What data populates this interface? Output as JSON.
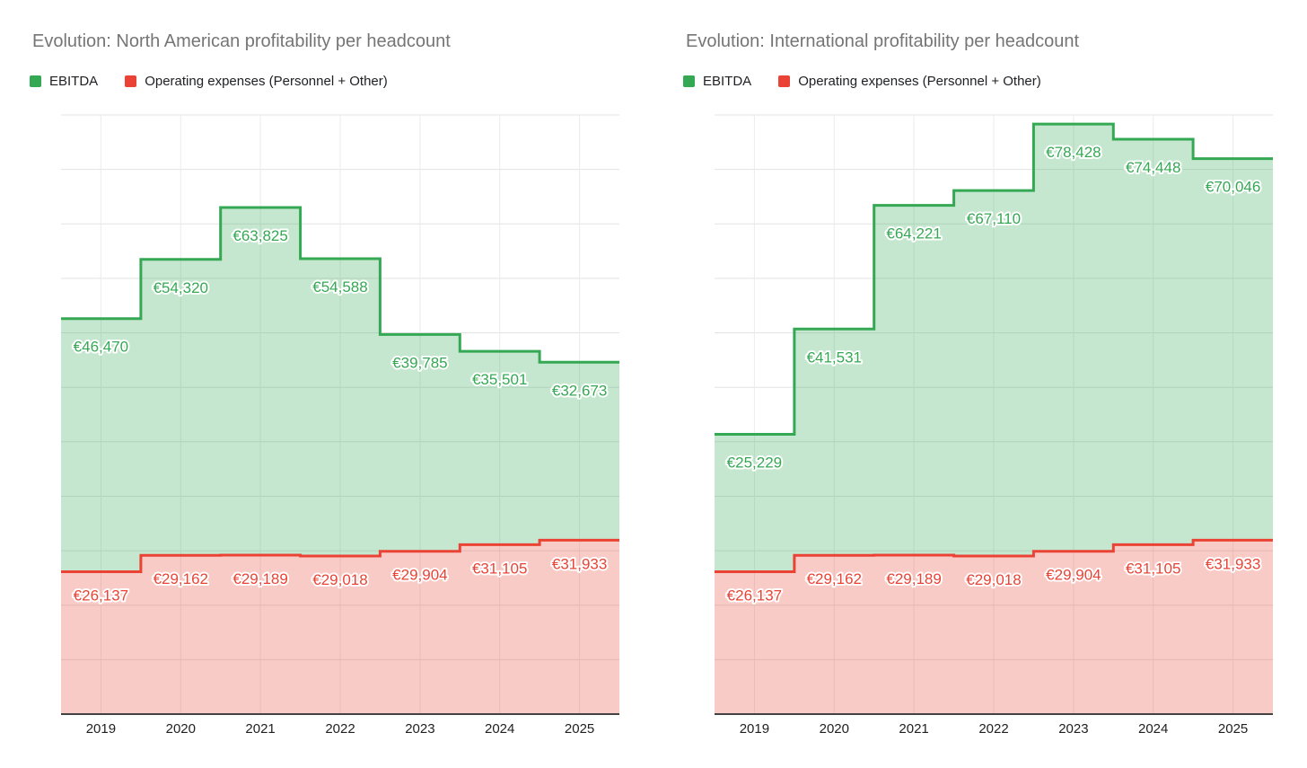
{
  "colors": {
    "ebitda": "#34a853",
    "expenses": "#ea4335",
    "title_text": "#757575",
    "axis_line": "#424242",
    "gridline_horizontal": "#e3e3e3",
    "gridline_vertical": "#ebebeb",
    "tick_label": "#1f1f1f",
    "background": "#ffffff"
  },
  "chart_data": [
    {
      "type": "area",
      "variant": "stepped",
      "stacked": true,
      "grid": true,
      "legend_position": "top",
      "y_axis_labels_visible": false,
      "title": "Evolution: North American profitability per headcount",
      "categories": [
        "2019",
        "2020",
        "2021",
        "2022",
        "2023",
        "2024",
        "2025"
      ],
      "ylim": [
        0,
        110000
      ],
      "grid_step": 10000,
      "series": [
        {
          "name": "EBITDA",
          "color": "#34a853",
          "values": [
            46470,
            54320,
            63825,
            54588,
            39785,
            35501,
            32673
          ],
          "labels": [
            "€46,470",
            "€54,320",
            "€63,825",
            "€54,588",
            "€39,785",
            "€35,501",
            "€32,673"
          ]
        },
        {
          "name": "Operating expenses (Personnel + Other)",
          "color": "#ea4335",
          "values": [
            26137,
            29162,
            29189,
            29018,
            29904,
            31105,
            31933
          ],
          "labels": [
            "€26,137",
            "€29,162",
            "€29,189",
            "€29,018",
            "€29,904",
            "€31,105",
            "€31,933"
          ]
        }
      ]
    },
    {
      "type": "area",
      "variant": "stepped",
      "stacked": true,
      "grid": true,
      "legend_position": "top",
      "y_axis_labels_visible": false,
      "title": "Evolution: International profitability per headcount",
      "categories": [
        "2019",
        "2020",
        "2021",
        "2022",
        "2023",
        "2024",
        "2025"
      ],
      "ylim": [
        0,
        110000
      ],
      "grid_step": 10000,
      "series": [
        {
          "name": "EBITDA",
          "color": "#34a853",
          "values": [
            25229,
            41531,
            64221,
            67110,
            78428,
            74448,
            70046
          ],
          "labels": [
            "€25,229",
            "€41,531",
            "€64,221",
            "€67,110",
            "€78,428",
            "€74,448",
            "€70,046"
          ]
        },
        {
          "name": "Operating expenses (Personnel + Other)",
          "color": "#ea4335",
          "values": [
            26137,
            29162,
            29189,
            29018,
            29904,
            31105,
            31933
          ],
          "labels": [
            "€26,137",
            "€29,162",
            "€29,189",
            "€29,018",
            "€29,904",
            "€31,105",
            "€31,933"
          ]
        }
      ]
    }
  ]
}
